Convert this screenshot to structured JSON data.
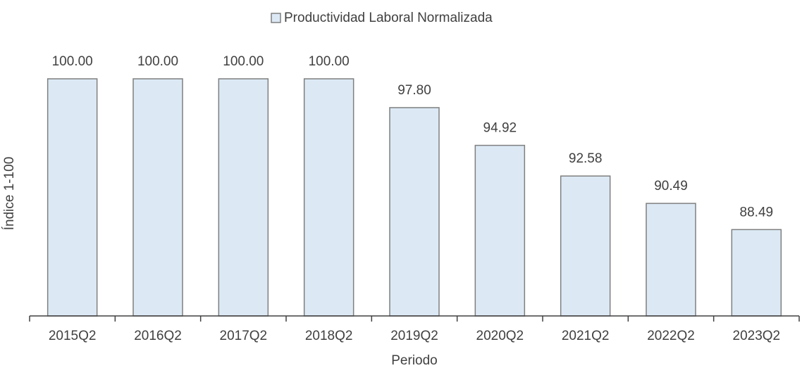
{
  "chart_data": {
    "type": "bar",
    "legend": "Productividad Laboral Normalizada",
    "y_label": "Índice 1-100",
    "x_label": "Periodo",
    "categories": [
      "2015Q2",
      "2016Q2",
      "2017Q2",
      "2018Q2",
      "2019Q2",
      "2020Q2",
      "2021Q2",
      "2022Q2",
      "2023Q2"
    ],
    "values": [
      100,
      100,
      100,
      100,
      97.8,
      94.92,
      92.58,
      90.49,
      88.49
    ],
    "value_labels": [
      "100.00",
      "100.00",
      "100.00",
      "100.00",
      "97.80",
      "94.92",
      "92.58",
      "90.49",
      "88.49"
    ],
    "color": "#dce9f5",
    "ylim": [
      81.9,
      100
    ]
  }
}
